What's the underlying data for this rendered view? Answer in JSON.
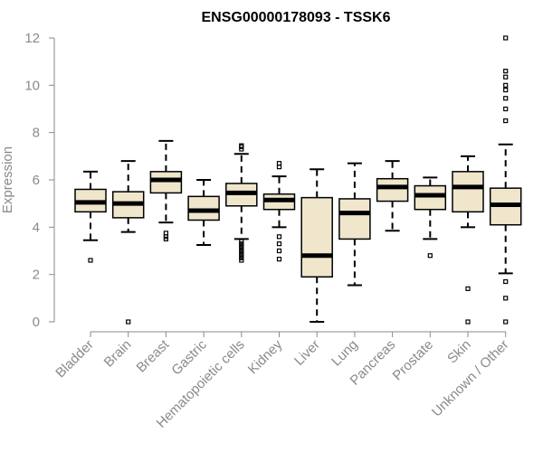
{
  "chart_data": {
    "type": "boxplot",
    "title": "ENSG00000178093 - TSSK6",
    "xlabel": "",
    "ylabel": "Expression",
    "ylim": [
      0,
      12
    ],
    "yticks": [
      0,
      2,
      4,
      6,
      8,
      10,
      12
    ],
    "grid": false,
    "legend": "none",
    "colors": {
      "box_fill": "#efe6cc",
      "box_stroke": "#000000",
      "axis": "#8a8a8a"
    },
    "categories": [
      "Bladder",
      "Brain",
      "Breast",
      "Gastric",
      "Hematopoietic cells",
      "Kidney",
      "Liver",
      "Lung",
      "Pancreas",
      "Prostate",
      "Skin",
      "Unknown / Other"
    ],
    "boxes": [
      {
        "q1": 4.65,
        "median": 5.05,
        "q3": 5.6,
        "whisker_low": 3.45,
        "whisker_high": 6.35,
        "outliers": [
          2.6
        ]
      },
      {
        "q1": 4.4,
        "median": 5.0,
        "q3": 5.5,
        "whisker_low": 3.8,
        "whisker_high": 6.8,
        "outliers": [
          0
        ]
      },
      {
        "q1": 5.45,
        "median": 6.0,
        "q3": 6.35,
        "whisker_low": 4.2,
        "whisker_high": 7.65,
        "outliers": [
          3.5,
          3.6,
          3.75
        ]
      },
      {
        "q1": 4.3,
        "median": 4.7,
        "q3": 5.3,
        "whisker_low": 3.25,
        "whisker_high": 6.0,
        "outliers": []
      },
      {
        "q1": 4.9,
        "median": 5.45,
        "q3": 5.85,
        "whisker_low": 3.5,
        "whisker_high": 7.1,
        "outliers": [
          7.3,
          7.4,
          7.45,
          3.4,
          3.3,
          3.2,
          3.1,
          3.0,
          2.9,
          2.8,
          2.7,
          2.6
        ]
      },
      {
        "q1": 4.75,
        "median": 5.15,
        "q3": 5.4,
        "whisker_low": 4.0,
        "whisker_high": 6.15,
        "outliers": [
          6.55,
          6.7,
          3.6,
          3.3,
          3.0,
          2.65
        ]
      },
      {
        "q1": 1.9,
        "median": 2.8,
        "q3": 5.25,
        "whisker_low": 0.0,
        "whisker_high": 6.45,
        "outliers": []
      },
      {
        "q1": 3.5,
        "median": 4.6,
        "q3": 5.2,
        "whisker_low": 1.55,
        "whisker_high": 6.7,
        "outliers": []
      },
      {
        "q1": 5.1,
        "median": 5.7,
        "q3": 6.05,
        "whisker_low": 3.85,
        "whisker_high": 6.8,
        "outliers": []
      },
      {
        "q1": 4.75,
        "median": 5.35,
        "q3": 5.75,
        "whisker_low": 3.5,
        "whisker_high": 6.1,
        "outliers": [
          2.8
        ]
      },
      {
        "q1": 4.65,
        "median": 5.7,
        "q3": 6.35,
        "whisker_low": 4.0,
        "whisker_high": 7.0,
        "outliers": [
          1.4,
          0.0
        ]
      },
      {
        "q1": 4.1,
        "median": 4.95,
        "q3": 5.65,
        "whisker_low": 2.05,
        "whisker_high": 7.5,
        "outliers": [
          12.0,
          10.6,
          10.35,
          10.0,
          9.8,
          9.45,
          9.0,
          8.5,
          1.7,
          1.0,
          0.0
        ]
      }
    ]
  }
}
